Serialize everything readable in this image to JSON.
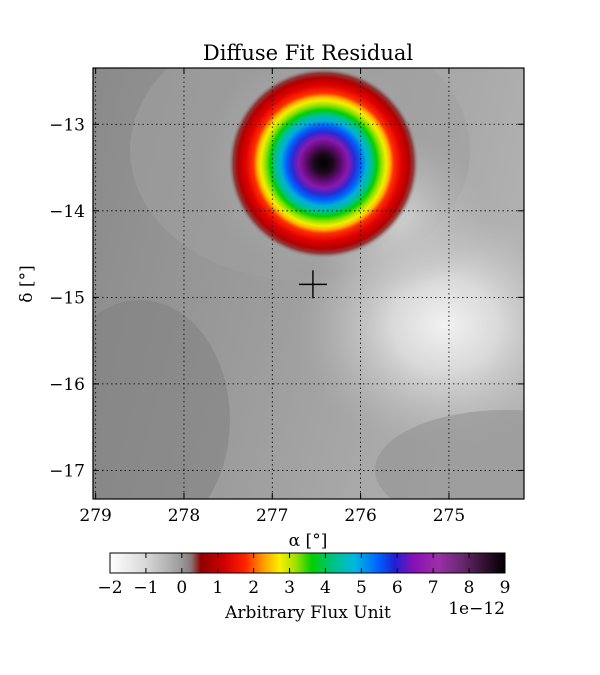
{
  "chart_data": {
    "type": "heatmap",
    "title": "Diffuse Fit Residual",
    "xlabel": "α [°]",
    "ylabel": "δ [°]",
    "xlim": [
      279.03,
      274.15
    ],
    "ylim": [
      -17.33,
      -12.35
    ],
    "x_ticks": [
      279,
      278,
      277,
      276,
      275
    ],
    "y_ticks": [
      -13,
      -14,
      -15,
      -16,
      -17
    ],
    "x_tick_labels": [
      "279",
      "278",
      "277",
      "276",
      "275"
    ],
    "y_tick_labels": [
      "−13",
      "−14",
      "−15",
      "−16",
      "−17"
    ],
    "grid": true,
    "source_peak": {
      "ra": 276.42,
      "dec": -13.45,
      "value": 9e-12
    },
    "marker": {
      "ra": 276.54,
      "dec": -14.85,
      "symbol": "+"
    },
    "colorbar": {
      "label": "Arbitrary Flux Unit",
      "min": -2,
      "max": 9,
      "ticks": [
        -2,
        -1,
        0,
        1,
        2,
        3,
        4,
        5,
        6,
        7,
        8,
        9
      ],
      "tick_labels": [
        "−2",
        "−1",
        "0",
        "1",
        "2",
        "3",
        "4",
        "5",
        "6",
        "7",
        "8",
        "9"
      ],
      "scale_label": "1e−12",
      "colormap": "nipy_spectral-like (white → gray → red → yellow → green → cyan → blue → purple → black)"
    }
  }
}
